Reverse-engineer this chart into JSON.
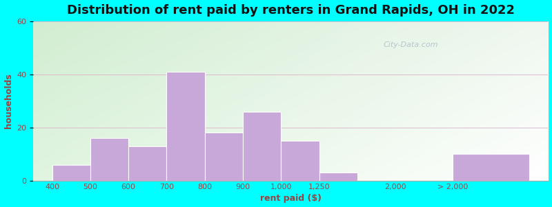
{
  "title": "Distribution of rent paid by renters in Grand Rapids, OH in 2022",
  "xlabel": "rent paid ($)",
  "ylabel": "households",
  "bar_labels": [
    "400",
    "500",
    "600",
    "700",
    "800",
    "900",
    "1,000",
    "1,250",
    "2,000",
    "> 2,000"
  ],
  "bar_values": [
    6,
    16,
    13,
    41,
    18,
    26,
    15,
    3,
    0,
    10
  ],
  "bar_color": "#c8a8d8",
  "bar_edgecolor": "#ffffff",
  "ylim": [
    0,
    60
  ],
  "yticks": [
    0,
    20,
    40,
    60
  ],
  "bg_outer": "#00ffff",
  "bg_inner_top_left": "#d0ecd0",
  "bg_inner_bottom_right": "#e8f0e8",
  "title_fontsize": 13,
  "axis_label_fontsize": 9,
  "tick_fontsize": 8,
  "watermark_text": "City-Data.com",
  "watermark_color": "#aab8c8",
  "grid_color": "#ddbbcc",
  "label_color": "#994444"
}
